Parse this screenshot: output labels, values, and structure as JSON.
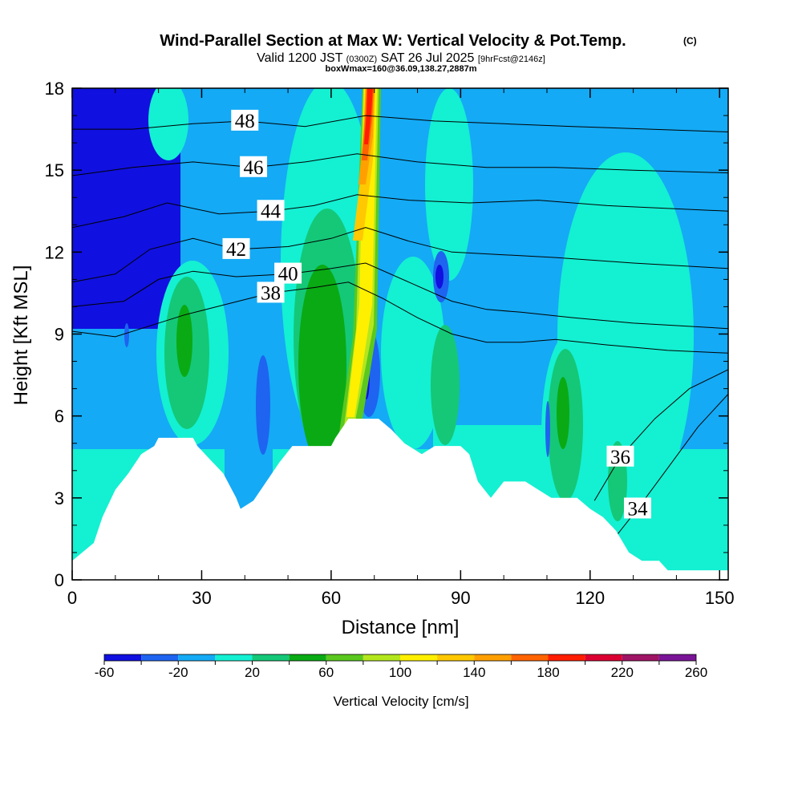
{
  "chart_data": {
    "type": "heatmap",
    "title": "Wind-Parallel Section at Max W: Vertical Velocity & Pot.Temp.",
    "title_mark": "(C)",
    "subtitle_prefix": "Valid 1200 JST",
    "subtitle_utc": "(0300Z)",
    "subtitle_date": "SAT 26 Jul 2025",
    "subtitle_fcst": "[9hrFcst@2146z]",
    "box_info": "boxWmax=160@36.09,138.27,2887m",
    "xlabel": "Distance [nm]",
    "ylabel": "Height [Kft MSL]",
    "xlim": [
      0,
      152
    ],
    "ylim": [
      0,
      18
    ],
    "xticks": [
      0,
      30,
      60,
      90,
      120,
      150
    ],
    "yticks": [
      0,
      3,
      6,
      9,
      12,
      15,
      18
    ],
    "colorbar": {
      "label": "Vertical Velocity [cm/s]",
      "levels": [
        -60,
        -40,
        -20,
        0,
        20,
        40,
        60,
        80,
        100,
        120,
        140,
        160,
        180,
        200,
        220,
        240,
        260
      ],
      "tick_labels": [
        -60,
        -20,
        20,
        60,
        100,
        140,
        180,
        220,
        260
      ],
      "colors": [
        "#1010e0",
        "#1e64f0",
        "#14aaf5",
        "#14f0d2",
        "#14c878",
        "#0aaa14",
        "#5ac81e",
        "#b4e61e",
        "#fff000",
        "#ffc800",
        "#ffa000",
        "#ff6400",
        "#ff1e00",
        "#dc0032",
        "#a01464",
        "#7a1496"
      ]
    },
    "terrain_kft": [
      [
        0,
        0.7
      ],
      [
        5,
        1.35
      ],
      [
        7,
        2.3
      ],
      [
        10,
        3.3
      ],
      [
        13,
        3.9
      ],
      [
        16,
        4.6
      ],
      [
        19,
        4.9
      ],
      [
        20,
        5.2
      ],
      [
        28,
        5.2
      ],
      [
        29,
        4.9
      ],
      [
        32,
        4.4
      ],
      [
        35,
        3.9
      ],
      [
        38,
        3.0
      ],
      [
        39,
        2.6
      ],
      [
        42,
        2.9
      ],
      [
        45,
        3.6
      ],
      [
        48,
        4.3
      ],
      [
        51,
        4.9
      ],
      [
        60,
        4.9
      ],
      [
        61,
        5.2
      ],
      [
        64,
        5.9
      ],
      [
        71,
        5.9
      ],
      [
        74,
        5.5
      ],
      [
        77,
        5.0
      ],
      [
        81,
        4.6
      ],
      [
        84,
        4.9
      ],
      [
        90,
        4.9
      ],
      [
        92,
        4.6
      ],
      [
        94,
        3.6
      ],
      [
        97,
        3.0
      ],
      [
        100,
        3.6
      ],
      [
        105,
        3.6
      ],
      [
        108,
        3.3
      ],
      [
        111,
        3.0
      ],
      [
        117,
        3.0
      ],
      [
        120,
        2.6
      ],
      [
        123,
        2.3
      ],
      [
        126,
        1.8
      ],
      [
        129,
        1.0
      ],
      [
        132,
        0.7
      ],
      [
        136,
        0.7
      ],
      [
        138,
        0.35
      ],
      [
        152,
        0.35
      ]
    ],
    "theta_contours": [
      {
        "label": "34",
        "points": [
          [
            126,
            1.6
          ],
          [
            131,
            2.6
          ],
          [
            138,
            4.1
          ],
          [
            145,
            5.6
          ],
          [
            152,
            6.8
          ]
        ]
      },
      {
        "label": "36",
        "points": [
          [
            121,
            2.9
          ],
          [
            127,
            4.5
          ],
          [
            135,
            5.9
          ],
          [
            143,
            7.0
          ],
          [
            152,
            7.7
          ]
        ]
      },
      {
        "label": "38",
        "points": [
          [
            0,
            9.1
          ],
          [
            10,
            8.9
          ],
          [
            18,
            9.3
          ],
          [
            26,
            9.7
          ],
          [
            36,
            10.1
          ],
          [
            46,
            10.5
          ],
          [
            56,
            10.7
          ],
          [
            64,
            10.9
          ],
          [
            72,
            10.3
          ],
          [
            80,
            9.6
          ],
          [
            88,
            9.0
          ],
          [
            96,
            8.7
          ],
          [
            104,
            8.7
          ],
          [
            112,
            8.8
          ],
          [
            124,
            8.6
          ],
          [
            138,
            8.4
          ],
          [
            152,
            8.3
          ]
        ]
      },
      {
        "label": "40",
        "points": [
          [
            0,
            10.0
          ],
          [
            12,
            10.2
          ],
          [
            20,
            11.0
          ],
          [
            28,
            11.3
          ],
          [
            38,
            11.1
          ],
          [
            50,
            11.2
          ],
          [
            60,
            11.4
          ],
          [
            68,
            11.6
          ],
          [
            78,
            10.9
          ],
          [
            88,
            10.2
          ],
          [
            96,
            9.9
          ],
          [
            104,
            9.8
          ],
          [
            116,
            9.6
          ],
          [
            130,
            9.4
          ],
          [
            152,
            9.2
          ]
        ]
      },
      {
        "label": "42",
        "points": [
          [
            0,
            10.9
          ],
          [
            10,
            11.2
          ],
          [
            18,
            12.1
          ],
          [
            28,
            12.5
          ],
          [
            38,
            12.1
          ],
          [
            50,
            12.2
          ],
          [
            60,
            12.5
          ],
          [
            68,
            12.9
          ],
          [
            78,
            12.4
          ],
          [
            88,
            12.0
          ],
          [
            100,
            11.9
          ],
          [
            112,
            11.8
          ],
          [
            130,
            11.6
          ],
          [
            152,
            11.4
          ]
        ]
      },
      {
        "label": "44",
        "points": [
          [
            0,
            12.9
          ],
          [
            12,
            13.3
          ],
          [
            22,
            13.8
          ],
          [
            34,
            13.4
          ],
          [
            46,
            13.5
          ],
          [
            56,
            13.7
          ],
          [
            66,
            14.1
          ],
          [
            78,
            13.9
          ],
          [
            92,
            13.8
          ],
          [
            108,
            13.9
          ],
          [
            124,
            13.7
          ],
          [
            152,
            13.5
          ]
        ]
      },
      {
        "label": "46",
        "points": [
          [
            0,
            14.8
          ],
          [
            14,
            15.1
          ],
          [
            28,
            15.3
          ],
          [
            42,
            15.1
          ],
          [
            54,
            15.3
          ],
          [
            66,
            15.6
          ],
          [
            80,
            15.3
          ],
          [
            96,
            15.1
          ],
          [
            112,
            15.1
          ],
          [
            130,
            15.0
          ],
          [
            152,
            14.9
          ]
        ]
      },
      {
        "label": "48",
        "points": [
          [
            0,
            16.5
          ],
          [
            14,
            16.5
          ],
          [
            28,
            16.7
          ],
          [
            40,
            16.8
          ],
          [
            54,
            16.6
          ],
          [
            68,
            17.0
          ],
          [
            84,
            16.8
          ],
          [
            100,
            16.7
          ],
          [
            116,
            16.6
          ],
          [
            134,
            16.5
          ],
          [
            152,
            16.4
          ]
        ]
      }
    ]
  }
}
